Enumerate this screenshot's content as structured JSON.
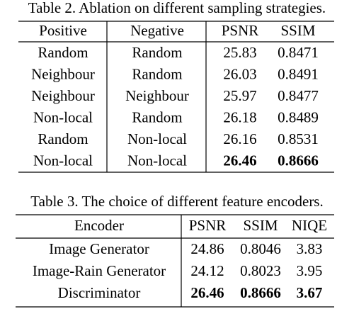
{
  "table2": {
    "caption": "Table 2. Ablation on different sampling strategies.",
    "header": [
      "Positive",
      "Negative",
      "PSNR",
      "SSIM"
    ],
    "rows": [
      [
        "Random",
        "Random",
        "25.83",
        "0.8471"
      ],
      [
        "Neighbour",
        "Random",
        "26.03",
        "0.8491"
      ],
      [
        "Neighbour",
        "Neighbour",
        "25.97",
        "0.8477"
      ],
      [
        "Non-local",
        "Random",
        "26.18",
        "0.8489"
      ],
      [
        "Random",
        "Non-local",
        "26.16",
        "0.8531"
      ],
      [
        "Non-local",
        "Non-local",
        "26.46",
        "0.8666"
      ]
    ]
  },
  "table3": {
    "caption": "Table 3. The choice of different feature encoders.",
    "header": [
      "Encoder",
      "PSNR",
      "SSIM",
      "NIQE"
    ],
    "rows": [
      [
        "Image Generator",
        "24.86",
        "0.8046",
        "3.83"
      ],
      [
        "Image-Rain Generator",
        "24.12",
        "0.8023",
        "3.95"
      ],
      [
        "Discriminator",
        "26.46",
        "0.8666",
        "3.67"
      ]
    ]
  }
}
